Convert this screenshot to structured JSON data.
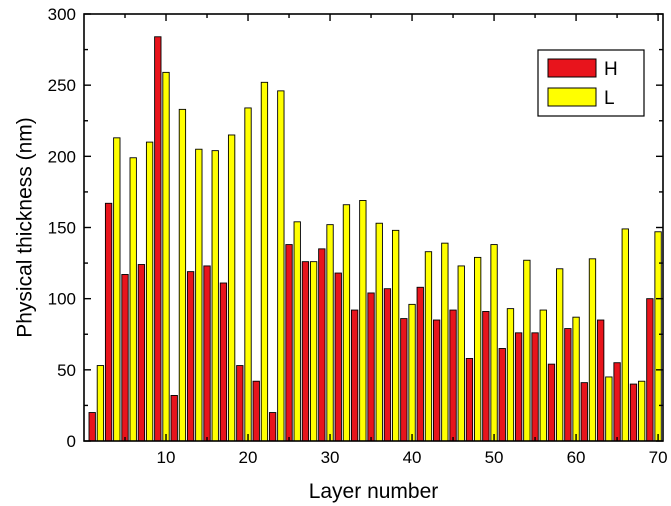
{
  "chart_data": {
    "type": "bar",
    "xlabel": "Layer number",
    "ylabel": "Physical thickness (nm)",
    "xlim": [
      0,
      70.6
    ],
    "ylim": [
      0,
      300
    ],
    "xticks": [
      10,
      20,
      30,
      40,
      50,
      60,
      70
    ],
    "yticks": [
      0,
      50,
      100,
      150,
      200,
      250,
      300
    ],
    "grid": false,
    "legend_position": "top-right",
    "series": [
      {
        "name": "H",
        "color": "#e8141c",
        "x": [
          1,
          3,
          5,
          7,
          9,
          11,
          13,
          15,
          17,
          19,
          21,
          23,
          25,
          27,
          29,
          31,
          33,
          35,
          37,
          39,
          41,
          43,
          45,
          47,
          49,
          51,
          53,
          55,
          57,
          59,
          61,
          63,
          65,
          67,
          69
        ],
        "values": [
          20,
          167,
          117,
          124,
          284,
          32,
          119,
          123,
          111,
          53,
          42,
          20,
          138,
          126,
          135,
          118,
          92,
          104,
          107,
          86,
          108,
          85,
          92,
          58,
          91,
          65,
          76,
          76,
          54,
          79,
          41,
          85,
          55,
          40,
          100
        ]
      },
      {
        "name": "L",
        "color": "#ffff00",
        "x": [
          2,
          4,
          6,
          8,
          10,
          12,
          14,
          16,
          18,
          20,
          22,
          24,
          26,
          28,
          30,
          32,
          34,
          36,
          38,
          40,
          42,
          44,
          46,
          48,
          50,
          52,
          54,
          56,
          58,
          60,
          62,
          64,
          66,
          68,
          70
        ],
        "values": [
          53,
          213,
          199,
          210,
          259,
          233,
          205,
          204,
          215,
          234,
          252,
          246,
          154,
          126,
          152,
          166,
          169,
          153,
          148,
          96,
          133,
          139,
          123,
          129,
          138,
          93,
          127,
          92,
          121,
          87,
          128,
          45,
          149,
          42,
          147
        ]
      }
    ]
  }
}
